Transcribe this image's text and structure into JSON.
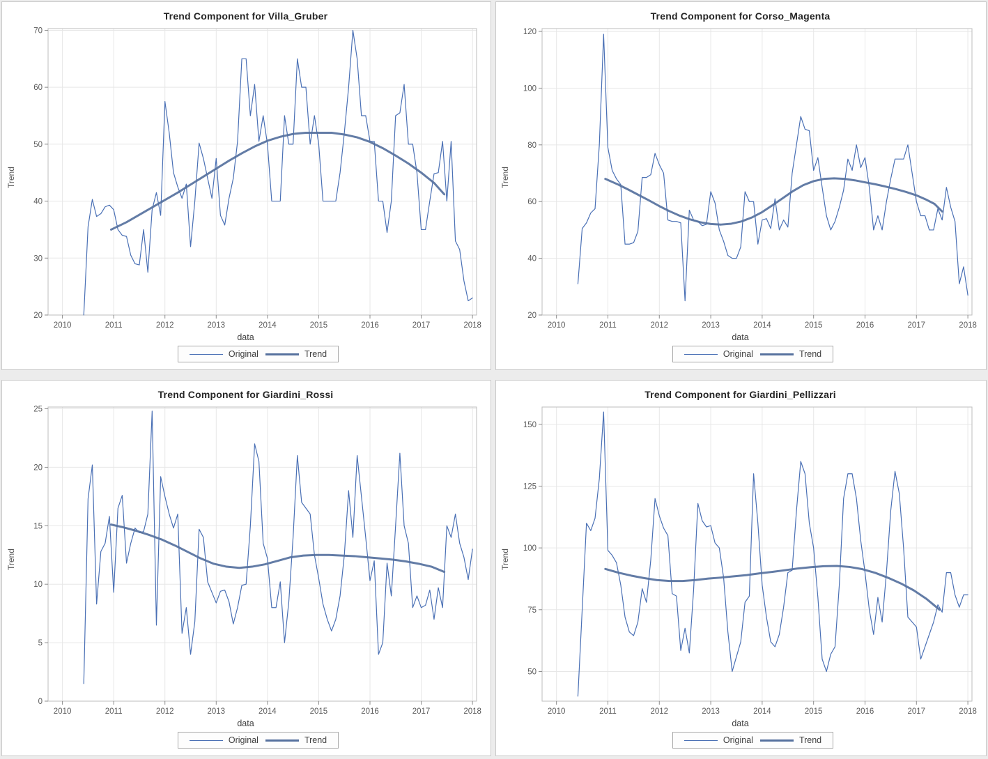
{
  "page": {
    "background": "#ececec"
  },
  "colors": {
    "original_line": "#4a70b5",
    "trend_line": "#56719e",
    "grid": "#e7e7e7",
    "frame": "#bdbdbd",
    "tick": "#8c8c8c",
    "tick_label": "#5a5a5a",
    "panel_border": "#c9c9c9",
    "panel_bg": "#ffffff"
  },
  "chart_data": [
    {
      "type": "line",
      "title": "Trend Component for Villa_Gruber",
      "xlabel": "data",
      "ylabel": "Trend",
      "xlim": [
        2009.72,
        2018.08
      ],
      "ylim": [
        20,
        70.3
      ],
      "xticks": [
        2010,
        2011,
        2012,
        2013,
        2014,
        2015,
        2016,
        2017,
        2018
      ],
      "yticks": [
        20,
        30,
        40,
        50,
        60,
        70
      ],
      "grid": true,
      "legend_position": "bottom",
      "legend": {
        "original": "Original",
        "trend": "Trend"
      },
      "series": [
        {
          "name": "Original",
          "role": "original",
          "x_start": 2010.4167,
          "x_step": 0.0833333,
          "values": [
            20,
            35.5,
            40.3,
            37.3,
            37.8,
            39,
            39.3,
            38.5,
            35,
            34,
            33.8,
            30.5,
            29,
            28.8,
            35,
            27.5,
            38.5,
            41.5,
            37.5,
            57.5,
            52,
            45,
            42.5,
            40.5,
            43,
            32,
            40,
            50.2,
            47.5,
            44,
            40.5,
            47.5,
            37.5,
            35.8,
            40.5,
            44,
            50.5,
            65,
            65,
            55,
            60.5,
            50.5,
            55,
            50,
            40,
            40,
            40,
            55,
            50,
            50,
            65,
            60,
            60,
            50,
            55,
            50,
            40,
            40,
            40,
            40,
            45,
            52,
            60,
            70,
            65,
            55,
            55,
            50.5,
            50.5,
            40,
            40,
            34.5,
            40,
            55,
            55.5,
            60.5,
            50,
            50,
            45,
            35,
            35,
            40,
            44.8,
            45,
            50.5,
            40,
            50.5,
            33,
            31.5,
            26,
            22.5,
            23
          ]
        },
        {
          "name": "Trend",
          "role": "trend",
          "points": [
            [
              2010.95,
              35
            ],
            [
              2011.25,
              36.3
            ],
            [
              2011.5,
              37.6
            ],
            [
              2011.75,
              38.9
            ],
            [
              2012,
              40.2
            ],
            [
              2012.25,
              41.5
            ],
            [
              2012.5,
              42.9
            ],
            [
              2012.75,
              44.3
            ],
            [
              2013,
              45.7
            ],
            [
              2013.25,
              47.1
            ],
            [
              2013.5,
              48.4
            ],
            [
              2013.75,
              49.6
            ],
            [
              2014,
              50.6
            ],
            [
              2014.25,
              51.3
            ],
            [
              2014.5,
              51.8
            ],
            [
              2014.75,
              52
            ],
            [
              2015,
              52
            ],
            [
              2015.25,
              52
            ],
            [
              2015.5,
              51.7
            ],
            [
              2015.75,
              51.2
            ],
            [
              2016,
              50.4
            ],
            [
              2016.25,
              49.3
            ],
            [
              2016.5,
              48
            ],
            [
              2016.75,
              46.6
            ],
            [
              2017,
              45
            ],
            [
              2017.25,
              43.2
            ],
            [
              2017.45,
              41.2
            ]
          ]
        }
      ]
    },
    {
      "type": "line",
      "title": "Trend Component for Corso_Magenta",
      "xlabel": "data",
      "ylabel": "Trend",
      "xlim": [
        2009.72,
        2018.08
      ],
      "ylim": [
        20,
        121
      ],
      "xticks": [
        2010,
        2011,
        2012,
        2013,
        2014,
        2015,
        2016,
        2017,
        2018
      ],
      "yticks": [
        20,
        40,
        60,
        80,
        100,
        120
      ],
      "grid": true,
      "legend_position": "bottom",
      "legend": {
        "original": "Original",
        "trend": "Trend"
      },
      "series": [
        {
          "name": "Original",
          "role": "original",
          "x_start": 2010.4167,
          "x_step": 0.0833333,
          "values": [
            31,
            50.5,
            52.5,
            56,
            57.5,
            80,
            119,
            79,
            71,
            68,
            66,
            45,
            45,
            45.5,
            49.5,
            68.5,
            68.5,
            69.5,
            77,
            73,
            70,
            53.5,
            53,
            53,
            52.5,
            25,
            57,
            53.5,
            53,
            51.5,
            52,
            63.5,
            59.5,
            50,
            46,
            41,
            40,
            40,
            44,
            63.5,
            60,
            60,
            45,
            53.5,
            54,
            50.5,
            61,
            50,
            53.5,
            51,
            70,
            80,
            90,
            85.5,
            85,
            71,
            75.5,
            65,
            55,
            50,
            53,
            58,
            64,
            75,
            71,
            80,
            72,
            75.5,
            65,
            50,
            55,
            50,
            60,
            68,
            75,
            75,
            75,
            80,
            70,
            60,
            55,
            55,
            50,
            50,
            57.5,
            53.5,
            65,
            58,
            53,
            31,
            37,
            27
          ]
        },
        {
          "name": "Trend",
          "role": "trend",
          "points": [
            [
              2010.95,
              68
            ],
            [
              2011.2,
              66
            ],
            [
              2011.4,
              64.2
            ],
            [
              2011.6,
              62.3
            ],
            [
              2011.8,
              60.4
            ],
            [
              2012,
              58.4
            ],
            [
              2012.2,
              56.6
            ],
            [
              2012.4,
              55
            ],
            [
              2012.6,
              53.7
            ],
            [
              2012.8,
              52.7
            ],
            [
              2013,
              52.1
            ],
            [
              2013.2,
              51.9
            ],
            [
              2013.4,
              52.2
            ],
            [
              2013.6,
              53
            ],
            [
              2013.8,
              54.4
            ],
            [
              2014,
              56.3
            ],
            [
              2014.2,
              58.7
            ],
            [
              2014.4,
              61.2
            ],
            [
              2014.6,
              63.7
            ],
            [
              2014.8,
              65.8
            ],
            [
              2015,
              67.2
            ],
            [
              2015.2,
              68
            ],
            [
              2015.4,
              68.2
            ],
            [
              2015.6,
              68
            ],
            [
              2015.8,
              67.5
            ],
            [
              2016,
              66.8
            ],
            [
              2016.2,
              66.1
            ],
            [
              2016.4,
              65.3
            ],
            [
              2016.6,
              64.4
            ],
            [
              2016.8,
              63.4
            ],
            [
              2017,
              62.2
            ],
            [
              2017.2,
              60.6
            ],
            [
              2017.35,
              59.2
            ],
            [
              2017.5,
              56.5
            ]
          ]
        }
      ]
    },
    {
      "type": "line",
      "title": "Trend Component for Giardini_Rossi",
      "xlabel": "data",
      "ylabel": "Trend",
      "xlim": [
        2009.72,
        2018.08
      ],
      "ylim": [
        0,
        25.15
      ],
      "xticks": [
        2010,
        2011,
        2012,
        2013,
        2014,
        2015,
        2016,
        2017,
        2018
      ],
      "yticks": [
        0,
        5,
        10,
        15,
        20,
        25
      ],
      "grid": true,
      "legend_position": "bottom",
      "legend": {
        "original": "Original",
        "trend": "Trend"
      },
      "series": [
        {
          "name": "Original",
          "role": "original",
          "x_start": 2010.4167,
          "x_step": 0.0833333,
          "values": [
            1.5,
            17.3,
            20.2,
            8.3,
            12.8,
            13.5,
            15.8,
            9.3,
            16.5,
            17.6,
            11.8,
            13.5,
            14.8,
            14.4,
            14.5,
            16,
            24.8,
            6.5,
            19.2,
            17.5,
            16,
            14.8,
            16,
            5.8,
            8,
            4,
            6.8,
            14.7,
            14,
            10.2,
            9.3,
            8.4,
            9.4,
            9.5,
            8.5,
            6.6,
            8,
            9.9,
            10,
            15,
            22,
            20.5,
            13.5,
            12.2,
            8,
            8,
            10.2,
            5,
            8.5,
            14,
            21,
            17,
            16.5,
            16,
            12.5,
            10.5,
            8.3,
            7,
            6,
            7,
            9,
            12.5,
            18,
            14,
            21,
            17.5,
            14,
            10.3,
            12,
            4,
            5,
            11.8,
            9,
            15,
            21.2,
            15,
            13.5,
            8,
            9,
            8,
            8.2,
            9.5,
            7,
            9.7,
            8,
            15,
            14,
            16,
            13.5,
            12.3,
            10.4,
            13
          ]
        },
        {
          "name": "Trend",
          "role": "trend",
          "points": [
            [
              2010.95,
              15.1
            ],
            [
              2011.2,
              14.85
            ],
            [
              2011.45,
              14.55
            ],
            [
              2011.7,
              14.2
            ],
            [
              2011.95,
              13.8
            ],
            [
              2012.2,
              13.3
            ],
            [
              2012.45,
              12.75
            ],
            [
              2012.7,
              12.2
            ],
            [
              2012.95,
              11.75
            ],
            [
              2013.2,
              11.5
            ],
            [
              2013.45,
              11.4
            ],
            [
              2013.7,
              11.5
            ],
            [
              2013.95,
              11.7
            ],
            [
              2014.2,
              12
            ],
            [
              2014.45,
              12.3
            ],
            [
              2014.7,
              12.45
            ],
            [
              2014.95,
              12.5
            ],
            [
              2015.2,
              12.5
            ],
            [
              2015.45,
              12.45
            ],
            [
              2015.7,
              12.4
            ],
            [
              2015.95,
              12.3
            ],
            [
              2016.2,
              12.2
            ],
            [
              2016.45,
              12.1
            ],
            [
              2016.7,
              11.95
            ],
            [
              2016.95,
              11.75
            ],
            [
              2017.2,
              11.5
            ],
            [
              2017.45,
              11.05
            ]
          ]
        }
      ]
    },
    {
      "type": "line",
      "title": "Trend Component for Giardini_Pellizzari",
      "xlabel": "data",
      "ylabel": "Trend",
      "xlim": [
        2009.72,
        2018.08
      ],
      "ylim": [
        38,
        157
      ],
      "xticks": [
        2010,
        2011,
        2012,
        2013,
        2014,
        2015,
        2016,
        2017,
        2018
      ],
      "yticks": [
        50,
        75,
        100,
        125,
        150
      ],
      "grid": true,
      "legend_position": "bottom",
      "legend": {
        "original": "Original",
        "trend": "Trend"
      },
      "series": [
        {
          "name": "Original",
          "role": "original",
          "x_start": 2010.4167,
          "x_step": 0.0833333,
          "values": [
            40,
            75,
            110,
            107,
            112,
            128,
            155,
            99,
            97,
            94,
            85,
            72,
            66,
            64.5,
            70,
            83.5,
            78,
            95,
            120,
            113,
            108,
            105,
            81.5,
            80.5,
            58.5,
            67.5,
            57.5,
            83,
            118,
            111,
            108.5,
            109,
            102,
            100,
            88,
            66,
            50,
            56,
            62,
            78,
            80.5,
            130,
            110,
            85,
            72,
            62,
            60,
            65,
            76,
            90,
            91,
            115,
            135,
            130,
            110,
            100,
            80,
            55,
            50,
            57,
            60,
            85,
            120,
            130,
            130,
            120,
            103,
            90,
            75,
            65,
            80,
            70,
            90,
            115,
            131,
            122,
            100,
            72,
            70,
            68,
            55,
            60,
            65,
            70,
            77,
            74,
            90,
            90,
            81,
            76,
            81,
            81
          ]
        },
        {
          "name": "Trend",
          "role": "trend",
          "points": [
            [
              2010.95,
              91.5
            ],
            [
              2011.2,
              90
            ],
            [
              2011.45,
              88.8
            ],
            [
              2011.7,
              87.8
            ],
            [
              2011.95,
              87
            ],
            [
              2012.2,
              86.6
            ],
            [
              2012.45,
              86.6
            ],
            [
              2012.7,
              87
            ],
            [
              2012.95,
              87.6
            ],
            [
              2013.2,
              88
            ],
            [
              2013.45,
              88.5
            ],
            [
              2013.7,
              89
            ],
            [
              2013.95,
              89.7
            ],
            [
              2014.2,
              90.3
            ],
            [
              2014.45,
              91
            ],
            [
              2014.7,
              91.7
            ],
            [
              2014.95,
              92.2
            ],
            [
              2015.2,
              92.6
            ],
            [
              2015.45,
              92.7
            ],
            [
              2015.7,
              92.3
            ],
            [
              2015.95,
              91.4
            ],
            [
              2016.2,
              89.9
            ],
            [
              2016.45,
              87.9
            ],
            [
              2016.7,
              85.6
            ],
            [
              2016.95,
              82.8
            ],
            [
              2017.2,
              79.3
            ],
            [
              2017.45,
              75
            ]
          ]
        }
      ]
    }
  ]
}
